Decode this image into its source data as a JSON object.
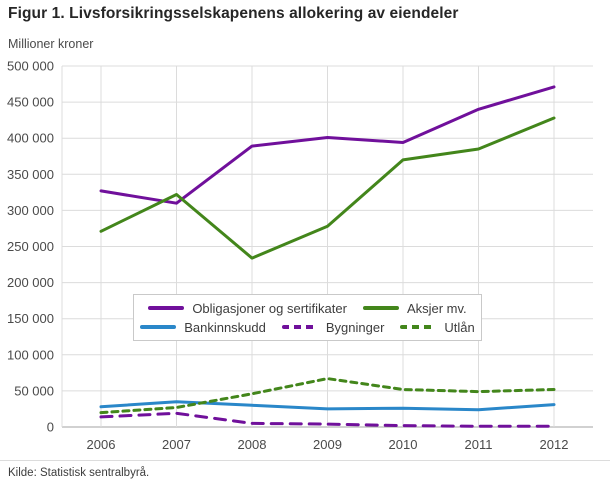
{
  "figure": {
    "title": "Figur 1. Livsforsikringsselskapenens allokering av eiendeler",
    "source": "Kilde: Statistisk sentralbyrå."
  },
  "style": {
    "grid_color": "#dcdcdc",
    "axis_color": "#a3a3a3",
    "tick_text_color": "#4a4a4a",
    "purple": "#70109b",
    "green": "#43861b",
    "blue": "#2a87c9"
  },
  "chart_data": {
    "type": "line",
    "title": "Figur 1. Livsforsikringsselskapenens allokering av eiendeler",
    "ylabel": "Millioner kroner",
    "xlabel": "",
    "categories": [
      "2006",
      "2007",
      "2008",
      "2009",
      "2010",
      "2011",
      "2012"
    ],
    "ylim": [
      0,
      500000
    ],
    "ytick_step": 50000,
    "ytick_labels": [
      "0",
      "50 000",
      "100 000",
      "150 000",
      "200 000",
      "250 000",
      "300 000",
      "350 000",
      "400 000",
      "450 000",
      "500 000"
    ],
    "grid": true,
    "legend_position": "inside-center",
    "series": [
      {
        "name": "Obligasjoner og sertifikater",
        "color": "#70109b",
        "style": "solid",
        "values": [
          327000,
          310000,
          389000,
          401000,
          394000,
          440000,
          471000
        ]
      },
      {
        "name": "Aksjer mv.",
        "color": "#43861b",
        "style": "solid",
        "values": [
          271000,
          322000,
          234000,
          278000,
          370000,
          385000,
          428000
        ]
      },
      {
        "name": "Bankinnskudd",
        "color": "#2a87c9",
        "style": "solid",
        "values": [
          28000,
          35000,
          30000,
          25000,
          26000,
          24000,
          31000
        ]
      },
      {
        "name": "Bygninger",
        "color": "#70109b",
        "style": "dashed",
        "values": [
          14000,
          19000,
          5000,
          4000,
          2000,
          1000,
          1000
        ]
      },
      {
        "name": "Utlån",
        "color": "#43861b",
        "style": "dashed",
        "values": [
          20000,
          27000,
          46000,
          67000,
          52000,
          49000,
          52000
        ]
      }
    ]
  }
}
